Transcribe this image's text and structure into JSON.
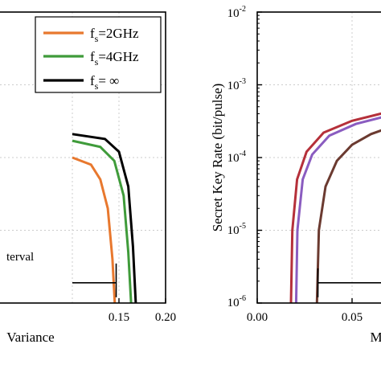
{
  "chart_data": [
    {
      "type": "line",
      "panel": "left",
      "xlabel": "Variance",
      "xlim": [
        0.1,
        0.2
      ],
      "x_ticks": [
        "0.15",
        "0.20"
      ],
      "ylim_log10": [
        -6,
        -2
      ],
      "y_scale": "log",
      "grid": true,
      "annotation": "terval",
      "legend": {
        "placement": "top-right",
        "entries": [
          {
            "main": "f",
            "sub": "s",
            "rest": "=2GHz"
          },
          {
            "main": "f",
            "sub": "s",
            "rest": "=4GHz"
          },
          {
            "main": "f",
            "sub": "s",
            "rest": "=   ∞"
          }
        ]
      },
      "series": [
        {
          "name": "fs=2GHz",
          "color": "#e8782e",
          "x": [
            0.1,
            0.12,
            0.13,
            0.138,
            0.143,
            0.1455,
            0.1455
          ],
          "y": [
            0.0001,
            8e-05,
            5e-05,
            2e-05,
            4e-06,
            1e-06,
            1e-06
          ]
        },
        {
          "name": "fs=4GHz",
          "color": "#3f9b3a",
          "x": [
            0.1,
            0.13,
            0.145,
            0.155,
            0.16,
            0.163,
            0.163
          ],
          "y": [
            0.00017,
            0.00014,
            9e-05,
            3e-05,
            5e-06,
            1e-06,
            1e-06
          ]
        },
        {
          "name": "fs=∞",
          "color": "#000000",
          "x": [
            0.1,
            0.135,
            0.15,
            0.16,
            0.165,
            0.168,
            0.168
          ],
          "y": [
            0.00021,
            0.00018,
            0.00012,
            4e-05,
            6e-06,
            1e-06,
            1e-06
          ]
        }
      ],
      "bracket": {
        "x_start": 0.1,
        "x_end": 0.147,
        "y": 1.2e-06
      }
    },
    {
      "type": "line",
      "panel": "right",
      "xlabel": "M",
      "ylabel": "Secret Key Rate (bit/pulse)",
      "xlim": [
        0.0,
        0.077
      ],
      "x_ticks": [
        "0.00",
        "0.05"
      ],
      "y_scale": "log",
      "ylim_log10": [
        -6,
        -2
      ],
      "y_ticks": [
        {
          "base": "10",
          "exp": "-2"
        },
        {
          "base": "10",
          "exp": "-3"
        },
        {
          "base": "10",
          "exp": "-4"
        },
        {
          "base": "10",
          "exp": "-5"
        },
        {
          "base": "10",
          "exp": "-6"
        }
      ],
      "grid": true,
      "series": [
        {
          "name": "curve-red",
          "color": "#b5303a",
          "x": [
            0.0178,
            0.0185,
            0.021,
            0.026,
            0.035,
            0.05,
            0.065,
            0.077
          ],
          "y": [
            1e-06,
            1e-05,
            5e-05,
            0.00012,
            0.00022,
            0.00032,
            0.0004,
            0.00044
          ]
        },
        {
          "name": "curve-purple",
          "color": "#8a5cc0",
          "x": [
            0.0205,
            0.0212,
            0.024,
            0.029,
            0.038,
            0.052,
            0.066,
            0.077
          ],
          "y": [
            1e-06,
            1e-05,
            5e-05,
            0.00011,
            0.0002,
            0.00029,
            0.00036,
            0.0004
          ]
        },
        {
          "name": "curve-brown",
          "color": "#6b3a30",
          "x": [
            0.0315,
            0.0325,
            0.036,
            0.042,
            0.05,
            0.06,
            0.07,
            0.077
          ],
          "y": [
            1e-06,
            1e-05,
            4e-05,
            9e-05,
            0.00015,
            0.00021,
            0.00026,
            0.00029
          ]
        }
      ],
      "bracket": {
        "x_start": 0.032,
        "x_end": 0.077,
        "y": 1.2e-06
      }
    }
  ]
}
